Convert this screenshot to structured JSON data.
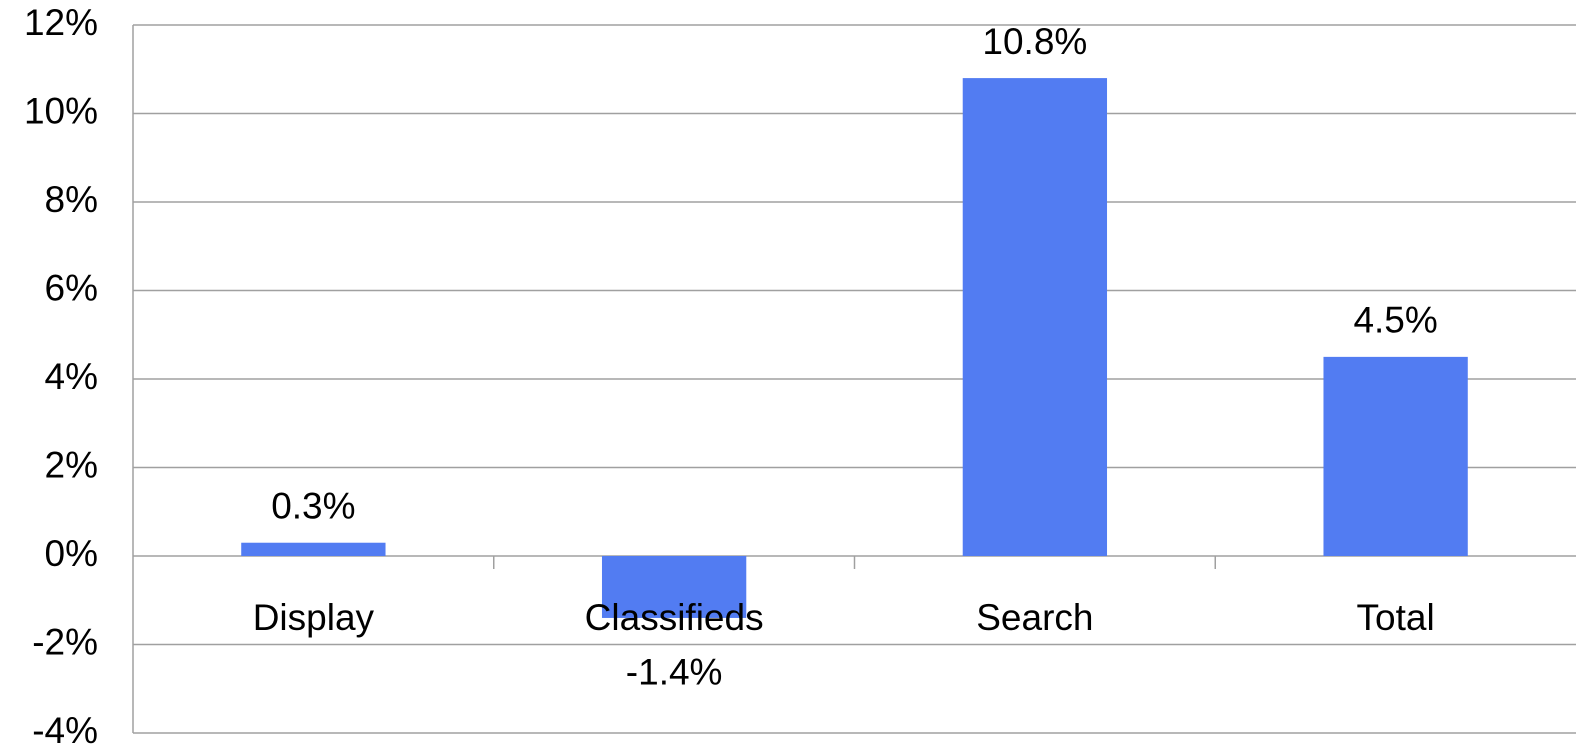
{
  "chart_data": {
    "type": "bar",
    "categories": [
      "Display",
      "Classifieds",
      "Search",
      "Total"
    ],
    "values": [
      0.3,
      -1.4,
      10.8,
      4.5
    ],
    "value_labels": [
      "0.3%",
      "-1.4%",
      "10.8%",
      "4.5%"
    ],
    "color": "#527cf2",
    "ylim": [
      -4,
      12
    ],
    "yticks": [
      {
        "value": -4,
        "label": "-4%"
      },
      {
        "value": -2,
        "label": "-2%"
      },
      {
        "value": 0,
        "label": "0%"
      },
      {
        "value": 2,
        "label": "2%"
      },
      {
        "value": 4,
        "label": "4%"
      },
      {
        "value": 6,
        "label": "6%"
      },
      {
        "value": 8,
        "label": "8%"
      },
      {
        "value": 10,
        "label": "10%"
      },
      {
        "value": 12,
        "label": "12%"
      }
    ],
    "grid": true
  }
}
